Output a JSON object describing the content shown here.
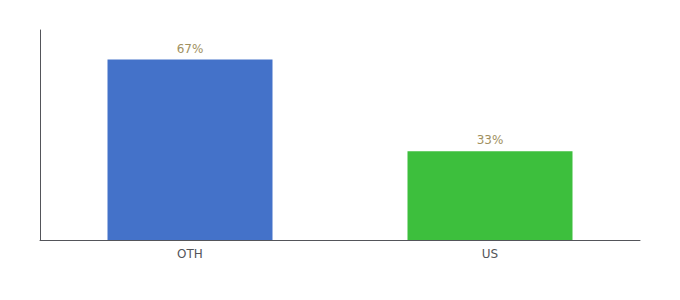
{
  "chart_data": {
    "type": "bar",
    "categories": [
      "OTH",
      "US"
    ],
    "values": [
      67,
      33
    ],
    "value_labels": [
      "67%",
      "33%"
    ],
    "colors": [
      "#4472c9",
      "#3dbf3d"
    ],
    "ylim": [
      0,
      78
    ],
    "grid": false,
    "data_labels": true,
    "tick_labels": "x"
  }
}
